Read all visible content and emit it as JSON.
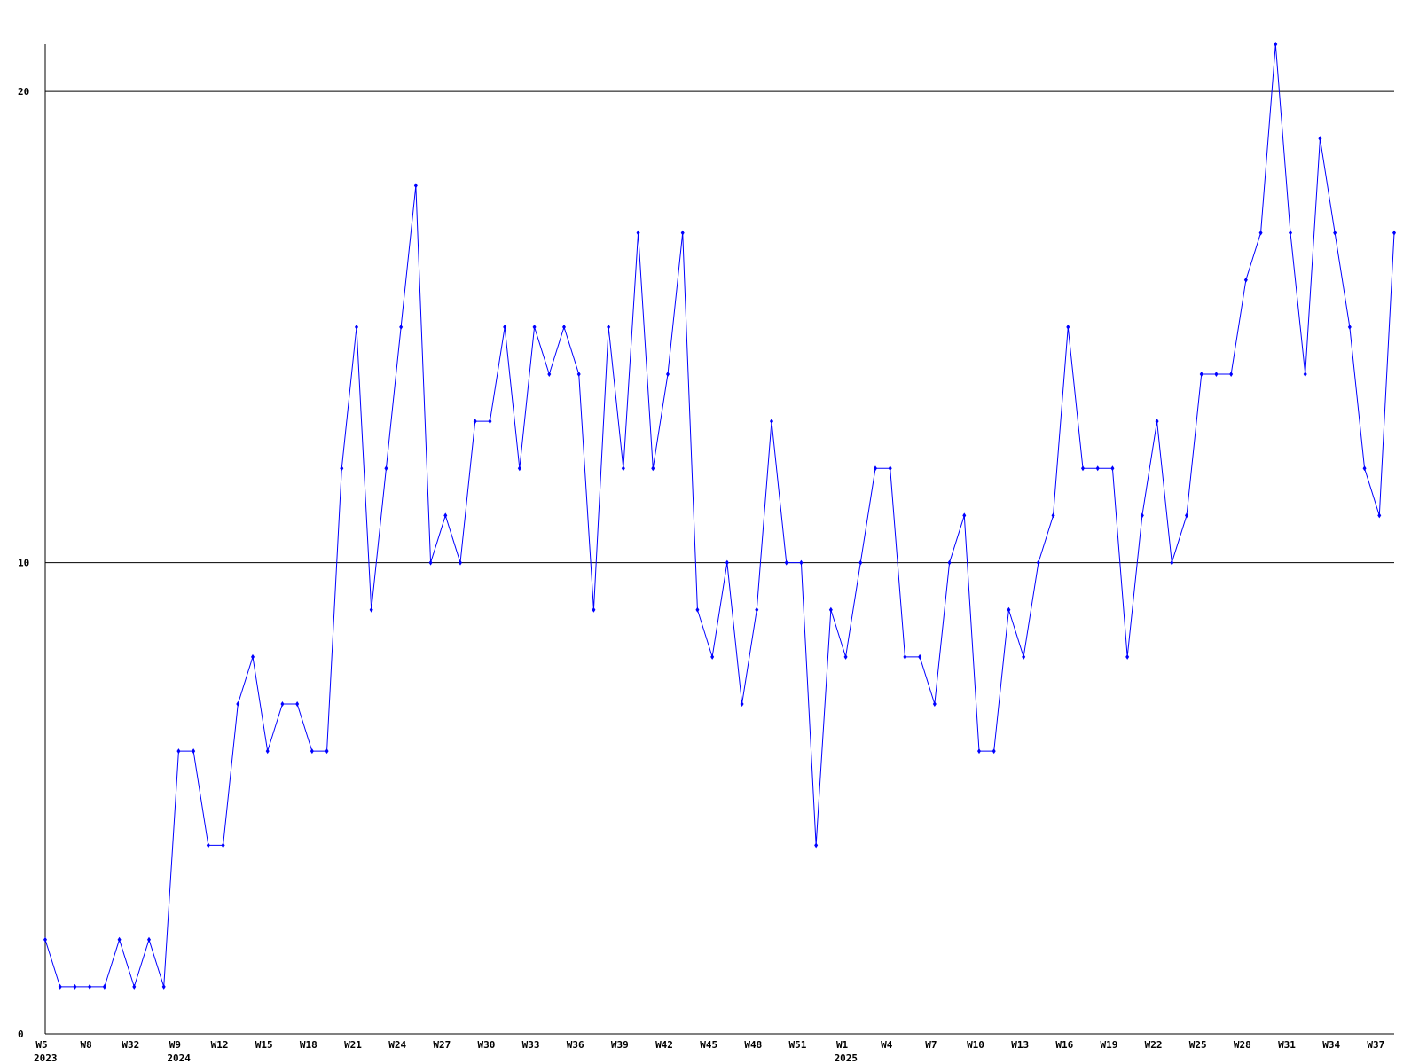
{
  "chart_data": {
    "type": "line",
    "categories": [
      "W5",
      null,
      null,
      "W8",
      null,
      null,
      "W32",
      null,
      null,
      "W9",
      null,
      null,
      "W12",
      null,
      null,
      "W15",
      null,
      null,
      "W18",
      null,
      null,
      "W21",
      null,
      null,
      "W24",
      null,
      null,
      "W27",
      null,
      null,
      "W30",
      null,
      null,
      "W33",
      null,
      null,
      "W36",
      null,
      null,
      "W39",
      null,
      null,
      "W42",
      null,
      null,
      "W45",
      null,
      null,
      "W48",
      null,
      null,
      "W51",
      null,
      null,
      "W1",
      null,
      null,
      "W4",
      null,
      null,
      "W7",
      null,
      null,
      "W10",
      null,
      null,
      "W13",
      null,
      null,
      "W16",
      null,
      null,
      "W19",
      null,
      null,
      "W22",
      null,
      null,
      "W25",
      null,
      null,
      "W28",
      null,
      null,
      "W31",
      null,
      null,
      "W34",
      null,
      null,
      "W37",
      null
    ],
    "years": [
      "2023",
      null,
      null,
      null,
      null,
      null,
      null,
      null,
      null,
      "2024",
      null,
      null,
      null,
      null,
      null,
      null,
      null,
      null,
      null,
      null,
      null,
      null,
      null,
      null,
      null,
      null,
      null,
      null,
      null,
      null,
      null,
      null,
      null,
      null,
      null,
      null,
      null,
      null,
      null,
      null,
      null,
      null,
      null,
      null,
      null,
      null,
      null,
      null,
      null,
      null,
      null,
      null,
      null,
      null,
      "2025",
      null,
      null,
      null,
      null,
      null,
      null,
      null,
      null,
      null,
      null,
      null,
      null,
      null,
      null,
      null,
      null,
      null,
      null,
      null,
      null,
      null,
      null,
      null,
      null,
      null,
      null,
      null,
      null,
      null,
      null,
      null,
      null,
      null,
      null,
      null,
      null,
      null
    ],
    "values": [
      2,
      1,
      1,
      1,
      1,
      2,
      1,
      2,
      1,
      6,
      6,
      4,
      4,
      7,
      8,
      6,
      7,
      7,
      6,
      6,
      12,
      15,
      9,
      12,
      15,
      18,
      10,
      11,
      10,
      13,
      13,
      15,
      12,
      15,
      14,
      15,
      14,
      9,
      15,
      12,
      17,
      12,
      14,
      17,
      9,
      8,
      10,
      7,
      9,
      13,
      10,
      10,
      4,
      9,
      8,
      10,
      12,
      12,
      8,
      8,
      7,
      10,
      11,
      6,
      6,
      9,
      8,
      10,
      11,
      15,
      12,
      12,
      12,
      8,
      11,
      13,
      10,
      11,
      14,
      14,
      14,
      16,
      17,
      21,
      17,
      14,
      19,
      17,
      15,
      12,
      11,
      17
    ],
    "color": "#0000ff",
    "ylim": [
      0,
      21
    ],
    "yticks": [
      0,
      10,
      20
    ],
    "grid": true
  }
}
